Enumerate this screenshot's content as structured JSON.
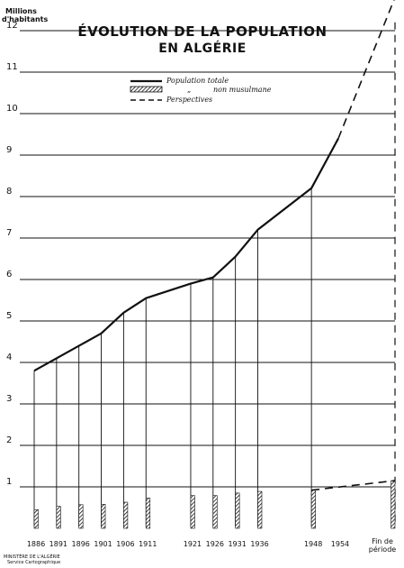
{
  "chart_data": {
    "type": "line",
    "title_line1": "ÉVOLUTION DE LA POPULATION",
    "title_line2": "EN ALGÉRIE",
    "unit_line1": "Millions",
    "unit_line2": "d'habitants",
    "ylim": [
      0,
      12
    ],
    "y_ticks": [
      "1",
      "2",
      "3",
      "4",
      "5",
      "6",
      "7",
      "8",
      "9",
      "10",
      "11",
      "12"
    ],
    "x_tick_labels": [
      "1886",
      "1891",
      "1896",
      "1901",
      "1906",
      "1911",
      "1921",
      "1926",
      "1931",
      "1936",
      "1948",
      "1954"
    ],
    "x_end_label_line1": "Fin de",
    "x_end_label_line2": "période",
    "legend": {
      "total": "Population totale",
      "non_muslim_ditto": "„",
      "non_muslim": "non musulmane",
      "perspectives": "Perspectives"
    },
    "series": [
      {
        "name": "Population totale",
        "style": "solid-line",
        "x": [
          1886,
          1891,
          1896,
          1901,
          1906,
          1911,
          1921,
          1926,
          1931,
          1936,
          1948,
          1954
        ],
        "values": [
          3.8,
          4.1,
          4.4,
          4.7,
          5.2,
          5.55,
          5.9,
          6.05,
          6.55,
          7.2,
          8.2,
          9.4
        ]
      },
      {
        "name": "non musulmane",
        "style": "hatched-bar",
        "x": [
          1886,
          1891,
          1896,
          1901,
          1906,
          1911,
          1921,
          1926,
          1931,
          1936,
          1948
        ],
        "values": [
          0.45,
          0.53,
          0.57,
          0.58,
          0.63,
          0.73,
          0.79,
          0.79,
          0.85,
          0.89,
          0.92
        ]
      },
      {
        "name": "Perspectives",
        "style": "dashed-line",
        "x": [
          1954,
          "Fin de période"
        ],
        "values": [
          9.4,
          12.8
        ]
      },
      {
        "name": "Perspectives non musulmane",
        "style": "dashed-line",
        "x": [
          1948,
          "Fin de période"
        ],
        "values": [
          0.92,
          1.15
        ]
      }
    ],
    "end_bar_value": 1.15,
    "grid": true
  },
  "credit": {
    "line1": "MINISTÈRE DE L'ALGÉRIE",
    "line2": "Service Cartographique"
  }
}
